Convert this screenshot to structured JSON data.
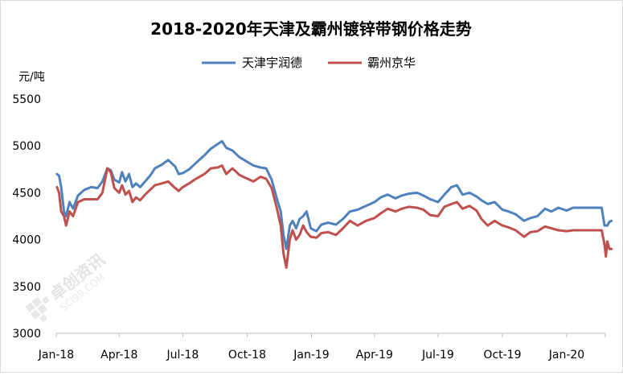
{
  "chart_data": {
    "type": "line",
    "title": "2018-2020年天津及霸州镀锌带钢价格走势",
    "ylabel": "元/吨",
    "xlabel": "",
    "ylim": [
      3000,
      5500
    ],
    "yticks": [
      3000,
      3500,
      4000,
      4500,
      5000,
      5500
    ],
    "xticks": [
      "Jan-18",
      "Apr-18",
      "Jul-18",
      "Oct-18",
      "Jan-19",
      "Apr-19",
      "Jul-19",
      "Oct-19",
      "Jan-20"
    ],
    "xrange": [
      "2018-01",
      "2020-03"
    ],
    "grid": false,
    "legend_position": "top-center",
    "watermark": "卓创资讯 SCI99.COM",
    "series": [
      {
        "name": "天津宇润德",
        "color": "#4f81bd",
        "points": [
          [
            "2018-01-02",
            4700
          ],
          [
            "2018-01-05",
            4680
          ],
          [
            "2018-01-08",
            4560
          ],
          [
            "2018-01-12",
            4300
          ],
          [
            "2018-01-15",
            4250
          ],
          [
            "2018-01-20",
            4400
          ],
          [
            "2018-01-25",
            4330
          ],
          [
            "2018-02-01",
            4470
          ],
          [
            "2018-02-10",
            4530
          ],
          [
            "2018-02-20",
            4560
          ],
          [
            "2018-03-01",
            4550
          ],
          [
            "2018-03-08",
            4620
          ],
          [
            "2018-03-15",
            4760
          ],
          [
            "2018-03-20",
            4740
          ],
          [
            "2018-03-25",
            4640
          ],
          [
            "2018-04-01",
            4610
          ],
          [
            "2018-04-05",
            4720
          ],
          [
            "2018-04-10",
            4620
          ],
          [
            "2018-04-15",
            4700
          ],
          [
            "2018-04-20",
            4560
          ],
          [
            "2018-04-25",
            4600
          ],
          [
            "2018-05-01",
            4560
          ],
          [
            "2018-05-08",
            4620
          ],
          [
            "2018-05-15",
            4680
          ],
          [
            "2018-05-22",
            4760
          ],
          [
            "2018-06-01",
            4800
          ],
          [
            "2018-06-10",
            4850
          ],
          [
            "2018-06-20",
            4780
          ],
          [
            "2018-06-25",
            4700
          ],
          [
            "2018-07-01",
            4710
          ],
          [
            "2018-07-10",
            4750
          ],
          [
            "2018-07-20",
            4820
          ],
          [
            "2018-08-01",
            4900
          ],
          [
            "2018-08-10",
            4970
          ],
          [
            "2018-08-20",
            5020
          ],
          [
            "2018-08-26",
            5050
          ],
          [
            "2018-09-01",
            4980
          ],
          [
            "2018-09-10",
            4950
          ],
          [
            "2018-09-20",
            4880
          ],
          [
            "2018-10-01",
            4830
          ],
          [
            "2018-10-10",
            4790
          ],
          [
            "2018-10-20",
            4770
          ],
          [
            "2018-10-28",
            4760
          ],
          [
            "2018-11-05",
            4640
          ],
          [
            "2018-11-12",
            4450
          ],
          [
            "2018-11-18",
            4300
          ],
          [
            "2018-11-22",
            4050
          ],
          [
            "2018-11-26",
            3900
          ],
          [
            "2018-12-01",
            4150
          ],
          [
            "2018-12-05",
            4200
          ],
          [
            "2018-12-10",
            4120
          ],
          [
            "2018-12-15",
            4220
          ],
          [
            "2018-12-20",
            4250
          ],
          [
            "2018-12-25",
            4300
          ],
          [
            "2018-12-31",
            4120
          ],
          [
            "2019-01-08",
            4090
          ],
          [
            "2019-01-15",
            4160
          ],
          [
            "2019-01-25",
            4180
          ],
          [
            "2019-02-05",
            4160
          ],
          [
            "2019-02-15",
            4220
          ],
          [
            "2019-02-25",
            4300
          ],
          [
            "2019-03-08",
            4320
          ],
          [
            "2019-03-20",
            4360
          ],
          [
            "2019-04-01",
            4400
          ],
          [
            "2019-04-10",
            4450
          ],
          [
            "2019-04-20",
            4480
          ],
          [
            "2019-05-01",
            4440
          ],
          [
            "2019-05-10",
            4470
          ],
          [
            "2019-05-20",
            4490
          ],
          [
            "2019-06-01",
            4500
          ],
          [
            "2019-06-10",
            4470
          ],
          [
            "2019-06-20",
            4430
          ],
          [
            "2019-07-01",
            4400
          ],
          [
            "2019-07-10",
            4480
          ],
          [
            "2019-07-20",
            4560
          ],
          [
            "2019-07-28",
            4580
          ],
          [
            "2019-08-05",
            4480
          ],
          [
            "2019-08-15",
            4500
          ],
          [
            "2019-08-25",
            4460
          ],
          [
            "2019-09-01",
            4420
          ],
          [
            "2019-09-10",
            4380
          ],
          [
            "2019-09-20",
            4400
          ],
          [
            "2019-10-01",
            4320
          ],
          [
            "2019-10-10",
            4300
          ],
          [
            "2019-10-20",
            4270
          ],
          [
            "2019-11-01",
            4200
          ],
          [
            "2019-11-10",
            4230
          ],
          [
            "2019-11-20",
            4250
          ],
          [
            "2019-12-01",
            4330
          ],
          [
            "2019-12-10",
            4300
          ],
          [
            "2019-12-20",
            4340
          ],
          [
            "2020-01-01",
            4310
          ],
          [
            "2020-01-10",
            4340
          ],
          [
            "2020-01-20",
            4340
          ],
          [
            "2020-02-01",
            4340
          ],
          [
            "2020-02-10",
            4340
          ],
          [
            "2020-02-20",
            4340
          ],
          [
            "2020-02-24",
            4150
          ],
          [
            "2020-02-28",
            4150
          ],
          [
            "2020-03-02",
            4190
          ],
          [
            "2020-03-05",
            4200
          ]
        ]
      },
      {
        "name": "霸州京华",
        "color": "#c0504d",
        "points": [
          [
            "2018-01-02",
            4560
          ],
          [
            "2018-01-05",
            4500
          ],
          [
            "2018-01-08",
            4300
          ],
          [
            "2018-01-12",
            4250
          ],
          [
            "2018-01-15",
            4150
          ],
          [
            "2018-01-20",
            4300
          ],
          [
            "2018-01-25",
            4250
          ],
          [
            "2018-02-01",
            4400
          ],
          [
            "2018-02-10",
            4430
          ],
          [
            "2018-02-20",
            4430
          ],
          [
            "2018-03-01",
            4430
          ],
          [
            "2018-03-08",
            4500
          ],
          [
            "2018-03-15",
            4760
          ],
          [
            "2018-03-20",
            4720
          ],
          [
            "2018-03-25",
            4550
          ],
          [
            "2018-04-01",
            4500
          ],
          [
            "2018-04-05",
            4580
          ],
          [
            "2018-04-10",
            4480
          ],
          [
            "2018-04-15",
            4520
          ],
          [
            "2018-04-20",
            4400
          ],
          [
            "2018-04-25",
            4450
          ],
          [
            "2018-05-01",
            4420
          ],
          [
            "2018-05-08",
            4480
          ],
          [
            "2018-05-15",
            4530
          ],
          [
            "2018-05-22",
            4580
          ],
          [
            "2018-06-01",
            4600
          ],
          [
            "2018-06-10",
            4620
          ],
          [
            "2018-06-20",
            4550
          ],
          [
            "2018-06-25",
            4520
          ],
          [
            "2018-07-01",
            4560
          ],
          [
            "2018-07-10",
            4600
          ],
          [
            "2018-07-20",
            4650
          ],
          [
            "2018-08-01",
            4700
          ],
          [
            "2018-08-10",
            4760
          ],
          [
            "2018-08-20",
            4770
          ],
          [
            "2018-08-26",
            4790
          ],
          [
            "2018-09-01",
            4700
          ],
          [
            "2018-09-10",
            4760
          ],
          [
            "2018-09-20",
            4690
          ],
          [
            "2018-10-01",
            4650
          ],
          [
            "2018-10-10",
            4620
          ],
          [
            "2018-10-20",
            4670
          ],
          [
            "2018-10-28",
            4650
          ],
          [
            "2018-11-05",
            4550
          ],
          [
            "2018-11-12",
            4350
          ],
          [
            "2018-11-18",
            4150
          ],
          [
            "2018-11-22",
            3850
          ],
          [
            "2018-11-26",
            3700
          ],
          [
            "2018-12-01",
            4000
          ],
          [
            "2018-12-05",
            4100
          ],
          [
            "2018-12-10",
            4000
          ],
          [
            "2018-12-15",
            4050
          ],
          [
            "2018-12-20",
            4150
          ],
          [
            "2018-12-25",
            4080
          ],
          [
            "2018-12-31",
            4030
          ],
          [
            "2019-01-08",
            4020
          ],
          [
            "2019-01-15",
            4070
          ],
          [
            "2019-01-25",
            4080
          ],
          [
            "2019-02-05",
            4050
          ],
          [
            "2019-02-15",
            4120
          ],
          [
            "2019-02-25",
            4200
          ],
          [
            "2019-03-08",
            4150
          ],
          [
            "2019-03-20",
            4200
          ],
          [
            "2019-04-01",
            4230
          ],
          [
            "2019-04-10",
            4280
          ],
          [
            "2019-04-20",
            4330
          ],
          [
            "2019-05-01",
            4300
          ],
          [
            "2019-05-10",
            4330
          ],
          [
            "2019-05-20",
            4350
          ],
          [
            "2019-06-01",
            4340
          ],
          [
            "2019-06-10",
            4320
          ],
          [
            "2019-06-20",
            4260
          ],
          [
            "2019-07-01",
            4250
          ],
          [
            "2019-07-10",
            4350
          ],
          [
            "2019-07-20",
            4380
          ],
          [
            "2019-07-28",
            4400
          ],
          [
            "2019-08-05",
            4330
          ],
          [
            "2019-08-15",
            4360
          ],
          [
            "2019-08-25",
            4310
          ],
          [
            "2019-09-01",
            4220
          ],
          [
            "2019-09-10",
            4150
          ],
          [
            "2019-09-20",
            4200
          ],
          [
            "2019-10-01",
            4150
          ],
          [
            "2019-10-10",
            4130
          ],
          [
            "2019-10-20",
            4100
          ],
          [
            "2019-11-01",
            4030
          ],
          [
            "2019-11-10",
            4080
          ],
          [
            "2019-11-20",
            4090
          ],
          [
            "2019-12-01",
            4140
          ],
          [
            "2019-12-10",
            4120
          ],
          [
            "2019-12-20",
            4100
          ],
          [
            "2020-01-01",
            4090
          ],
          [
            "2020-01-10",
            4100
          ],
          [
            "2020-01-20",
            4100
          ],
          [
            "2020-02-01",
            4100
          ],
          [
            "2020-02-10",
            4100
          ],
          [
            "2020-02-20",
            4100
          ],
          [
            "2020-02-24",
            3950
          ],
          [
            "2020-02-26",
            3820
          ],
          [
            "2020-02-28",
            3980
          ],
          [
            "2020-03-02",
            3900
          ],
          [
            "2020-03-05",
            3900
          ]
        ]
      }
    ]
  }
}
